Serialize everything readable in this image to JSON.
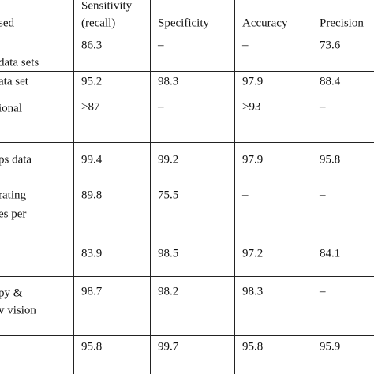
{
  "table": {
    "header": [
      [
        "sed"
      ],
      [
        "Sensitivity",
        "(recall)"
      ],
      [
        "Specificity"
      ],
      [
        "Accuracy"
      ],
      [
        "Precision"
      ]
    ],
    "rows": [
      {
        "label": [
          "data sets"
        ],
        "cells": [
          "86.3",
          "–",
          "–",
          "73.6"
        ]
      },
      {
        "label": [
          "ata set"
        ],
        "cells": [
          "95.2",
          "98.3",
          "97.9",
          "88.4"
        ]
      },
      {
        "label": [
          "ional"
        ],
        "cells": [
          ">87",
          "–",
          ">93",
          "–"
        ]
      },
      {
        "label": [
          "ps data"
        ],
        "cells": [
          "99.4",
          "99.2",
          "97.9",
          "95.8"
        ]
      },
      {
        "label": [
          "rating",
          "es per"
        ],
        "cells": [
          "89.8",
          "75.5",
          "–",
          "–"
        ]
      },
      {
        "label": [],
        "cells": [
          "83.9",
          "98.5",
          "97.2",
          "84.1"
        ]
      },
      {
        "label": [
          "py &",
          "v vision"
        ],
        "cells": [
          "98.7",
          "98.2",
          "98.3",
          "–"
        ]
      },
      {
        "label": [],
        "cells": [
          "95.8",
          "99.7",
          "95.8",
          "95.9"
        ]
      }
    ]
  }
}
